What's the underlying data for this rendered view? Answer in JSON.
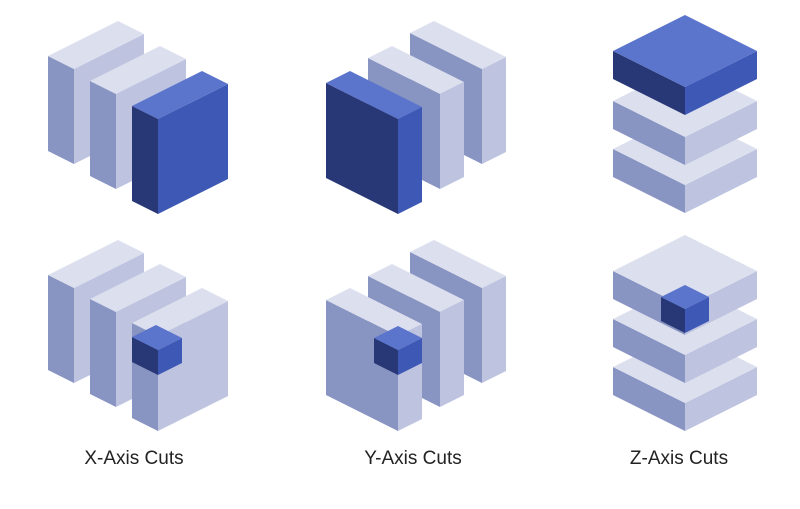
{
  "captions": {
    "x_axis": "X-Axis Cuts",
    "y_axis": "Y-Axis Cuts",
    "z_axis": "Z-Axis Cuts"
  },
  "colors": {
    "light_top": "#DCDFEE",
    "light_left": "#8894C2",
    "light_right": "#BEC3E0",
    "blue_top": "#5B74CC",
    "blue_left": "#283775",
    "blue_right": "#3E58B6",
    "background": "#FFFFFF",
    "caption_text": "#222222"
  }
}
